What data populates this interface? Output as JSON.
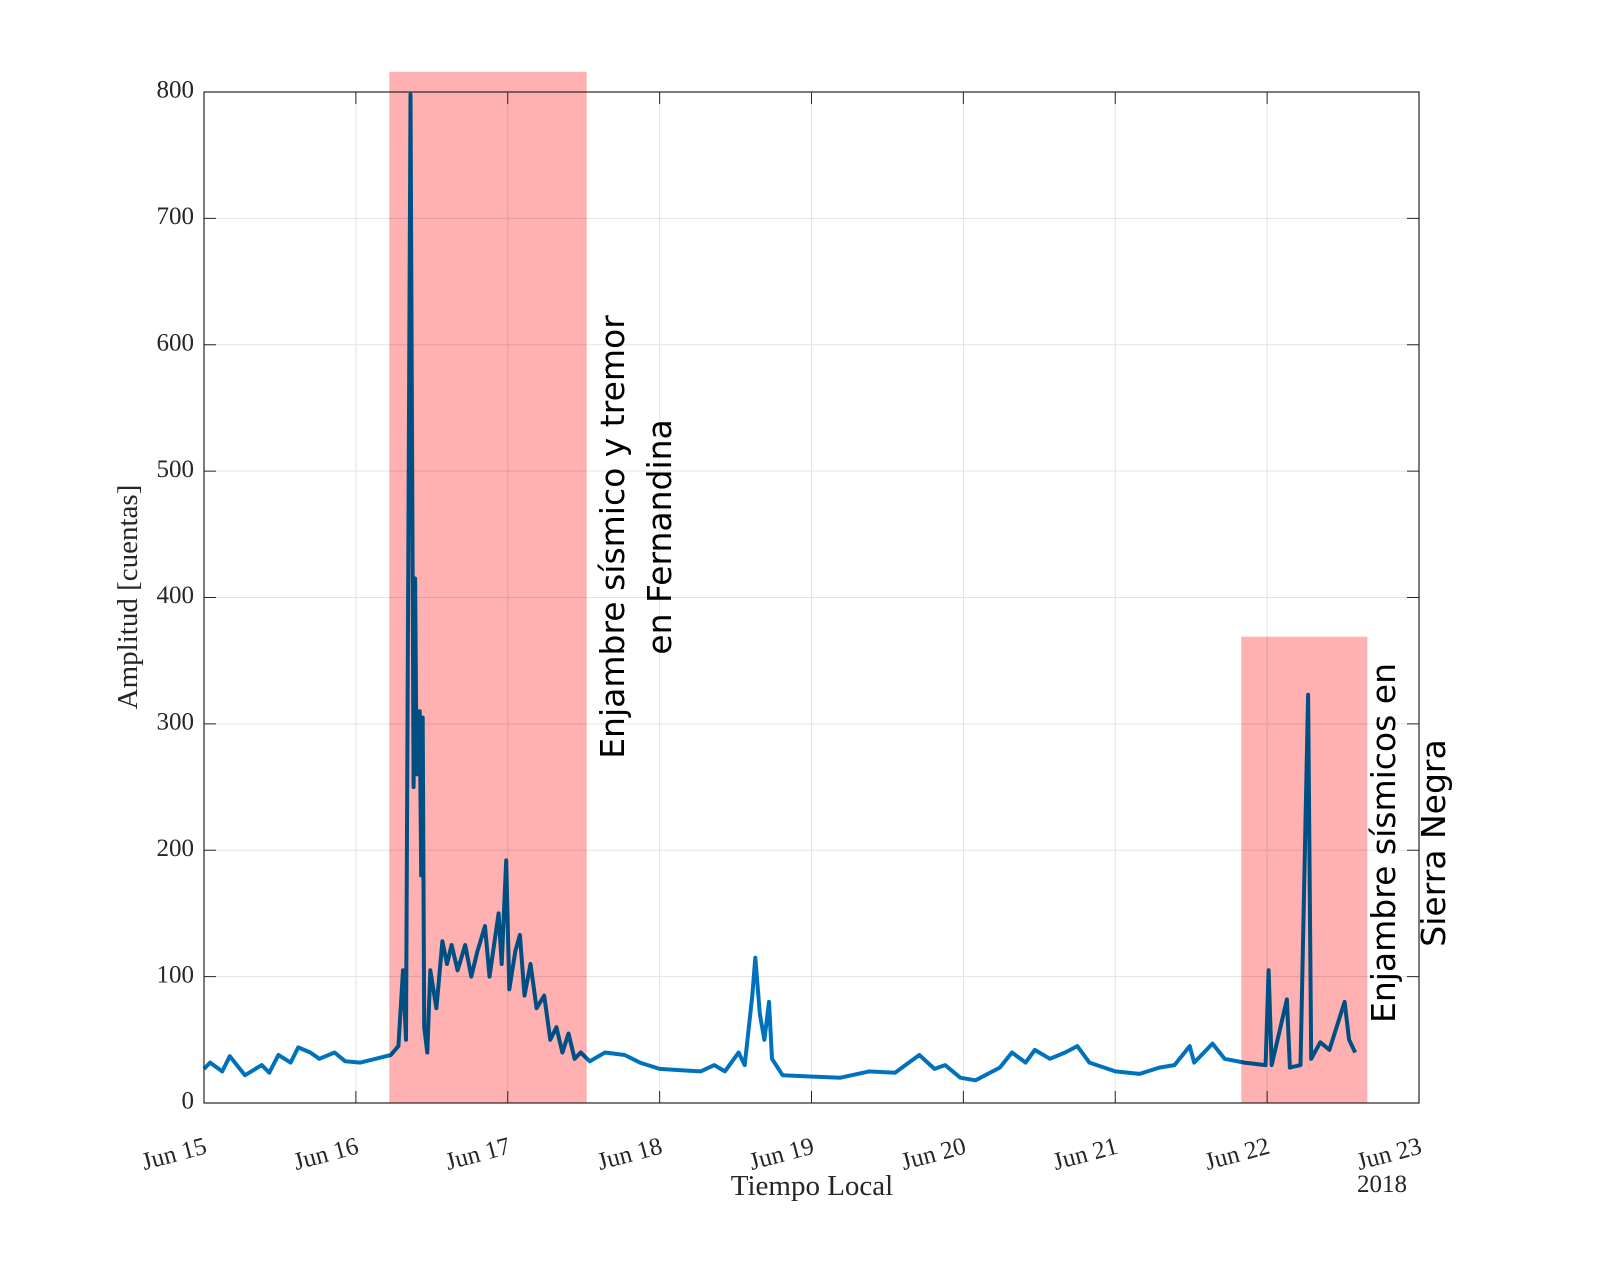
{
  "chart_data": {
    "type": "line",
    "xlabel": "Tiempo Local",
    "ylabel": "Amplitud [cuentas]",
    "x_axis_note": "2018",
    "color": "#0072bd",
    "grid": true,
    "xlim": [
      15,
      23
    ],
    "ylim": [
      0,
      800
    ],
    "xticks": [
      {
        "value": 15,
        "label": "Jun 15"
      },
      {
        "value": 16,
        "label": "Jun 16"
      },
      {
        "value": 17,
        "label": "Jun 17"
      },
      {
        "value": 18,
        "label": "Jun 18"
      },
      {
        "value": 19,
        "label": "Jun 19"
      },
      {
        "value": 20,
        "label": "Jun 20"
      },
      {
        "value": 21,
        "label": "Jun 21"
      },
      {
        "value": 22,
        "label": "Jun 22"
      },
      {
        "value": 23,
        "label": "Jun 23"
      }
    ],
    "yticks": [
      0,
      100,
      200,
      300,
      400,
      500,
      600,
      700,
      800
    ],
    "highlights": [
      {
        "x0": 16.22,
        "x1": 17.52,
        "y1": 816,
        "color": "#ffb0b0",
        "label": [
          "Enjambre sísmico y tremor",
          "en Fernandina"
        ]
      },
      {
        "x0": 21.83,
        "x1": 22.66,
        "y1": 369,
        "color": "#ffb0b0",
        "label": [
          "Enjambre sísmicos en",
          "Sierra Negra"
        ]
      }
    ],
    "x": [
      15.0,
      15.04,
      15.12,
      15.17,
      15.27,
      15.38,
      15.43,
      15.49,
      15.57,
      15.62,
      15.7,
      15.76,
      15.86,
      15.93,
      16.03,
      16.13,
      16.23,
      16.28,
      16.31,
      16.33,
      16.36,
      16.38,
      16.39,
      16.4,
      16.42,
      16.43,
      16.44,
      16.45,
      16.47,
      16.49,
      16.53,
      16.57,
      16.6,
      16.63,
      16.67,
      16.72,
      16.76,
      16.8,
      16.85,
      16.88,
      16.94,
      16.96,
      16.99,
      17.01,
      17.05,
      17.08,
      17.11,
      17.15,
      17.19,
      17.24,
      17.28,
      17.32,
      17.36,
      17.4,
      17.44,
      17.48,
      17.54,
      17.64,
      17.77,
      17.87,
      18.0,
      18.13,
      18.27,
      18.36,
      18.43,
      18.52,
      18.56,
      18.61,
      18.63,
      18.66,
      18.69,
      18.72,
      18.74,
      18.81,
      18.99,
      19.19,
      19.38,
      19.55,
      19.71,
      19.81,
      19.88,
      19.98,
      20.08,
      20.24,
      20.32,
      20.41,
      20.47,
      20.57,
      20.67,
      20.75,
      20.83,
      21.0,
      21.16,
      21.29,
      21.39,
      21.49,
      21.52,
      21.64,
      21.72,
      21.85,
      21.99,
      22.01,
      22.03,
      22.13,
      22.15,
      22.22,
      22.27,
      22.29,
      22.35,
      22.41,
      22.51,
      22.54,
      22.58
    ],
    "values": [
      27,
      32,
      25,
      37,
      22,
      30,
      24,
      38,
      32,
      44,
      40,
      35,
      40,
      33,
      32,
      35,
      38,
      45,
      105,
      50,
      798,
      250,
      415,
      260,
      310,
      180,
      305,
      60,
      40,
      105,
      75,
      128,
      110,
      125,
      105,
      125,
      100,
      120,
      140,
      100,
      150,
      110,
      192,
      90,
      120,
      133,
      85,
      110,
      75,
      85,
      50,
      60,
      40,
      55,
      35,
      40,
      33,
      40,
      38,
      32,
      27,
      26,
      25,
      30,
      25,
      40,
      30,
      85,
      115,
      70,
      50,
      80,
      35,
      22,
      21,
      20,
      25,
      24,
      38,
      27,
      30,
      20,
      18,
      28,
      40,
      32,
      42,
      35,
      40,
      45,
      32,
      25,
      23,
      28,
      30,
      45,
      32,
      47,
      35,
      32,
      30,
      105,
      30,
      82,
      28,
      30,
      323,
      35,
      48,
      42,
      80,
      50,
      40
    ]
  }
}
